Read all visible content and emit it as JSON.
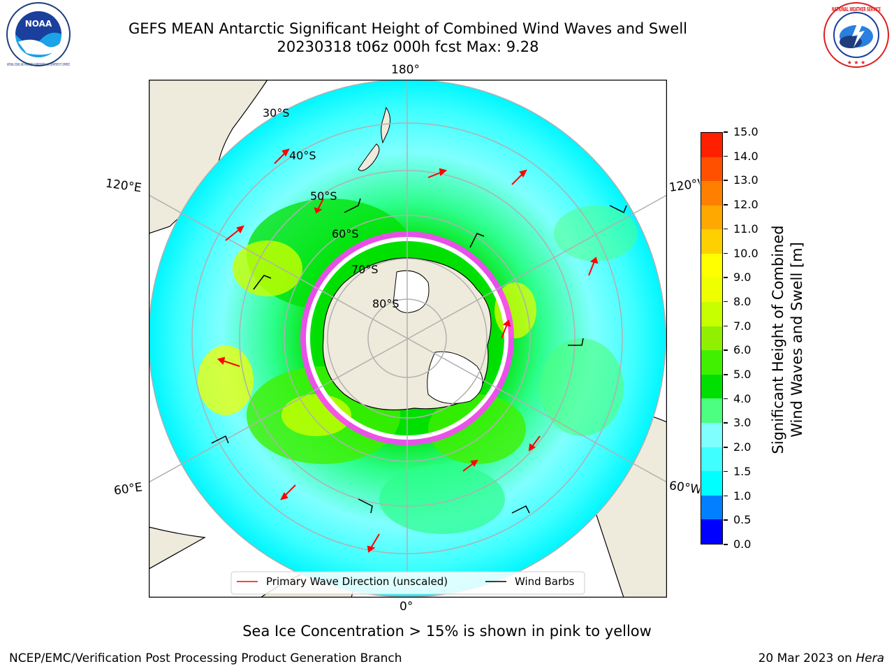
{
  "header": {
    "title_line1": "GEFS MEAN Antarctic Significant Height of Combined Wind Waves and Swell",
    "title_line2": "20230318 t06z 000h fcst   Max: 9.28",
    "left_logo_text": "NOAA",
    "left_logo_ring_text": "NATIONAL OCEANIC AND ATMOSPHERIC ADMINISTRATION · U.S. DEPARTMENT OF COMMERCE",
    "right_logo_ring_text": "NATIONAL WEATHER SERVICE"
  },
  "map": {
    "longitude_labels": {
      "top": "180°",
      "bottom": "0°",
      "left_upper": "120°E",
      "left_lower": "60°E",
      "right_upper": "120°W",
      "right_lower": "60°W"
    },
    "latitude_labels": [
      "30°S",
      "40°S",
      "50°S",
      "60°S",
      "70°S",
      "80°S"
    ],
    "legend": {
      "primary_wave_label": "Primary Wave Direction (unscaled)",
      "wind_barbs_label": "Wind Barbs",
      "primary_wave_color": "#ff0000",
      "wind_barbs_color": "#000000"
    },
    "colors": {
      "land": "#efebdc",
      "antarctica": "#efebdc",
      "ocean_low": "#00ffff",
      "ocean_mid": "#2cfe8a",
      "ocean_high": "#00e000",
      "sea_ice": "#ff40ff"
    }
  },
  "colorbar": {
    "label_line1": "Significant Height of Combined",
    "label_line2": "Wind Waves and Swell [m]",
    "ticks": [
      "0.0",
      "0.5",
      "1.0",
      "1.5",
      "2.0",
      "3.0",
      "4.0",
      "5.0",
      "6.0",
      "7.0",
      "8.0",
      "9.0",
      "10.0",
      "11.0",
      "12.0",
      "13.0",
      "14.0",
      "15.0"
    ],
    "colors": [
      "#0000ff",
      "#0080ff",
      "#00ffff",
      "#40ffff",
      "#80ffff",
      "#4cff80",
      "#00e000",
      "#40f000",
      "#90f000",
      "#c8ff00",
      "#f0ff00",
      "#ffff00",
      "#ffd000",
      "#ffa800",
      "#ff8000",
      "#ff5000",
      "#ff2000"
    ]
  },
  "caption": "Sea Ice Concentration > 15% is shown in pink to yellow",
  "footer": {
    "left": "NCEP/EMC/Verification Post Processing Product Generation Branch",
    "right_prefix": "20 Mar 2023 on ",
    "right_host": "Hera"
  }
}
